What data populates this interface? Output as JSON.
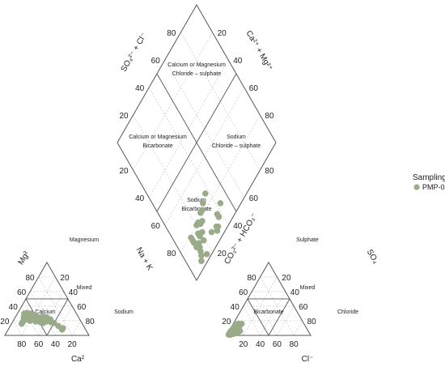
{
  "chart_data": {
    "type": "scatter",
    "subtype": "piper_diagram",
    "title": "",
    "legend": {
      "title": "Sampling",
      "placement": "right",
      "entries": [
        {
          "name": "PMP-04",
          "color": "#9aab8a"
        }
      ]
    },
    "point_color": "#9aab8a",
    "cation_triangle": {
      "bottom_label": "Ca²",
      "left_label": "Mg²",
      "right_label": "Na + K",
      "bottom_ticks": [
        "80",
        "60",
        "40",
        "20"
      ],
      "left_ticks": [
        "20",
        "40",
        "60",
        "80"
      ],
      "right_ticks": [
        "20",
        "40",
        "60",
        "80"
      ],
      "zones": {
        "top": "Magnesium",
        "center": "Mixed",
        "left": "Calcium",
        "right": "Sodium"
      },
      "points_pct_Ca_Mg_NaK": [
        [
          65,
          25,
          10
        ],
        [
          62,
          26,
          12
        ],
        [
          60,
          27,
          13
        ],
        [
          58,
          28,
          14
        ],
        [
          63,
          22,
          15
        ],
        [
          57,
          25,
          18
        ],
        [
          55,
          27,
          18
        ],
        [
          52,
          25,
          23
        ],
        [
          50,
          28,
          22
        ],
        [
          48,
          25,
          27
        ],
        [
          45,
          24,
          31
        ],
        [
          42,
          26,
          32
        ],
        [
          40,
          23,
          37
        ],
        [
          38,
          25,
          37
        ],
        [
          35,
          22,
          43
        ],
        [
          68,
          20,
          12
        ],
        [
          66,
          22,
          12
        ],
        [
          64,
          24,
          12
        ],
        [
          61,
          23,
          16
        ],
        [
          59,
          22,
          19
        ],
        [
          56,
          23,
          21
        ],
        [
          53,
          22,
          25
        ],
        [
          51,
          20,
          29
        ],
        [
          47,
          21,
          32
        ],
        [
          44,
          19,
          37
        ],
        [
          70,
          18,
          12
        ],
        [
          72,
          16,
          12
        ],
        [
          60,
          20,
          20
        ],
        [
          54,
          19,
          27
        ],
        [
          49,
          18,
          33
        ],
        [
          46,
          17,
          37
        ],
        [
          41,
          19,
          40
        ],
        [
          36,
          18,
          46
        ],
        [
          33,
          17,
          50
        ],
        [
          30,
          13,
          57
        ],
        [
          28,
          8,
          64
        ],
        [
          26,
          10,
          64
        ],
        [
          62,
          30,
          8
        ],
        [
          58,
          31,
          11
        ],
        [
          54,
          30,
          16
        ]
      ]
    },
    "anion_triangle": {
      "bottom_label": "Cl⁻",
      "left_label": "CO₃²⁻ + HCO₃⁻",
      "right_label": "SO₄",
      "bottom_ticks": [
        "20",
        "40",
        "60",
        "80"
      ],
      "left_ticks": [
        "20",
        "40",
        "60",
        "80"
      ],
      "right_ticks": [
        "20",
        "40",
        "60",
        "80"
      ],
      "zones": {
        "top": "Sulphate",
        "center": "Mixed",
        "left": "Bicarbonate",
        "right": "Chloride"
      },
      "points_pct_HCO3_SO4_Cl": [
        [
          96,
          2,
          2
        ],
        [
          94,
          3,
          3
        ],
        [
          92,
          4,
          4
        ],
        [
          90,
          5,
          5
        ],
        [
          88,
          6,
          6
        ],
        [
          86,
          7,
          7
        ],
        [
          84,
          8,
          8
        ],
        [
          82,
          10,
          8
        ],
        [
          80,
          12,
          8
        ],
        [
          78,
          13,
          9
        ],
        [
          95,
          1,
          4
        ],
        [
          93,
          2,
          5
        ],
        [
          91,
          2,
          7
        ],
        [
          89,
          3,
          8
        ],
        [
          87,
          3,
          10
        ],
        [
          85,
          4,
          11
        ],
        [
          83,
          5,
          12
        ],
        [
          81,
          6,
          13
        ],
        [
          97,
          1,
          2
        ],
        [
          90,
          7,
          3
        ],
        [
          86,
          10,
          4
        ],
        [
          82,
          14,
          4
        ],
        [
          78,
          16,
          6
        ],
        [
          76,
          15,
          9
        ],
        [
          74,
          16,
          10
        ],
        [
          88,
          9,
          3
        ],
        [
          84,
          12,
          4
        ],
        [
          80,
          15,
          5
        ],
        [
          92,
          6,
          2
        ],
        [
          94,
          4,
          2
        ]
      ]
    },
    "diamond": {
      "top_left_label": "SO₄²⁻ + Cl⁻",
      "top_right_label": "Ca²⁺ + Mg²⁺",
      "top_left_ticks": [
        "80",
        "60",
        "40",
        "20"
      ],
      "top_right_ticks": [
        "20",
        "40",
        "60",
        "80"
      ],
      "bottom_left_ticks": [
        "20",
        "40",
        "60",
        "80"
      ],
      "bottom_right_ticks": [
        "80",
        "60",
        "40",
        "20"
      ],
      "zones": {
        "top": "Calcium or Magnesium Chloride – sulphate",
        "left": "Calcium or Magnesium Bicarbonate",
        "right": "Sodium Chloride – sulphate",
        "bottom": "Sodium Bicarbonate"
      }
    }
  }
}
